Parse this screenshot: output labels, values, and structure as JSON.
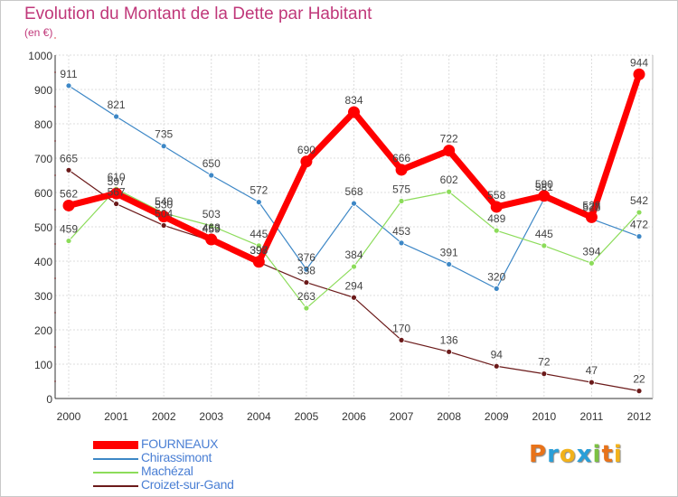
{
  "header": {
    "title": "Evolution du Montant de la Dette par Habitant",
    "subtitle": "(en €)"
  },
  "brand": {
    "letters": [
      "P",
      "r",
      "o",
      "x",
      "i",
      "t",
      "i"
    ],
    "colors": [
      "#e8731a",
      "#2a9fd8",
      "#f2b21b",
      "#2a9fd8",
      "#7cc142",
      "#e8731a",
      "#f2b21b"
    ]
  },
  "chart_data": {
    "type": "line",
    "title": "Evolution du Montant de la Dette par Habitant",
    "subtitle": "(en €)",
    "xlabel": "",
    "ylabel": "",
    "ylim": [
      0,
      1000
    ],
    "yticks": [
      0,
      100,
      200,
      300,
      400,
      500,
      600,
      700,
      800,
      900,
      1000
    ],
    "grid": true,
    "legend_position": "bottom-left",
    "x": [
      "2000",
      "2001",
      "2002",
      "2003",
      "2004",
      "2005",
      "2006",
      "2007",
      "2008",
      "2009",
      "2010",
      "2011",
      "2012"
    ],
    "series": [
      {
        "name": "FOURNEAUX",
        "color": "#ff0000",
        "values": [
          562,
          597,
          530,
          463,
          398,
          690,
          834,
          666,
          722,
          558,
          590,
          528,
          944
        ]
      },
      {
        "name": "Chirassimont",
        "color": "#3d87c6",
        "values": [
          911,
          821,
          735,
          650,
          572,
          376,
          568,
          453,
          391,
          320,
          581,
          523,
          472
        ]
      },
      {
        "name": "Machézal",
        "color": "#8cdc5a",
        "values": [
          459,
          610,
          540,
          503,
          445,
          263,
          384,
          575,
          602,
          489,
          445,
          394,
          542
        ]
      },
      {
        "name": "Croizet-sur-Gand",
        "color": "#6b1a1a",
        "values": [
          665,
          567,
          504,
          459,
          397,
          338,
          294,
          170,
          136,
          94,
          72,
          47,
          22
        ]
      }
    ]
  }
}
